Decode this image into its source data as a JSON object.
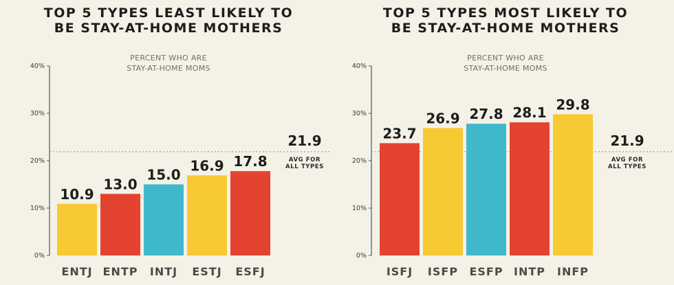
{
  "chart_data": [
    {
      "type": "bar",
      "title": [
        "TOP 5 TYPES LEAST LIKELY TO",
        "BE STAY-AT-HOME MOTHERS"
      ],
      "subtitle": [
        "PERCENT WHO ARE",
        "STAY-AT-HOME MOMS"
      ],
      "categories": [
        "ENTJ",
        "ENTP",
        "INTJ",
        "ESTJ",
        "ESFJ"
      ],
      "values": [
        10.9,
        13.0,
        15.0,
        16.9,
        17.8
      ],
      "value_labels": [
        "10.9",
        "13.0",
        "15.0",
        "16.9",
        "17.8"
      ],
      "colors": [
        "#f7c933",
        "#e3432f",
        "#3fb8cc",
        "#f7c933",
        "#e3432f"
      ],
      "ylim": [
        0,
        40
      ],
      "yticks": [
        "0%",
        "10%",
        "20%",
        "30%",
        "40%"
      ],
      "reference_line": {
        "value": 21.9,
        "label": "21.9",
        "caption": [
          "AVG FOR",
          "ALL TYPES"
        ]
      }
    },
    {
      "type": "bar",
      "title": [
        "TOP 5 TYPES MOST LIKELY TO",
        "BE STAY-AT-HOME MOTHERS"
      ],
      "subtitle": [
        "PERCENT WHO ARE",
        "STAY-AT-HOME MOMS"
      ],
      "categories": [
        "ISFJ",
        "ISFP",
        "ESFP",
        "INTP",
        "INFP"
      ],
      "values": [
        23.7,
        26.9,
        27.8,
        28.1,
        29.8
      ],
      "value_labels": [
        "23.7",
        "26.9",
        "27.8",
        "28.1",
        "29.8"
      ],
      "colors": [
        "#e3432f",
        "#f7c933",
        "#3fb8cc",
        "#e3432f",
        "#f7c933"
      ],
      "ylim": [
        0,
        40
      ],
      "yticks": [
        "0%",
        "10%",
        "20%",
        "30%",
        "40%"
      ],
      "reference_line": {
        "value": 21.9,
        "label": "21.9",
        "caption": [
          "AVG FOR",
          "ALL TYPES"
        ]
      }
    }
  ],
  "style": {
    "axis_color": "#555555",
    "tick_label_color": "#3a3a3a",
    "category_label_color": "#4a4a4a",
    "reference_line_color": "#9a9a9a"
  }
}
